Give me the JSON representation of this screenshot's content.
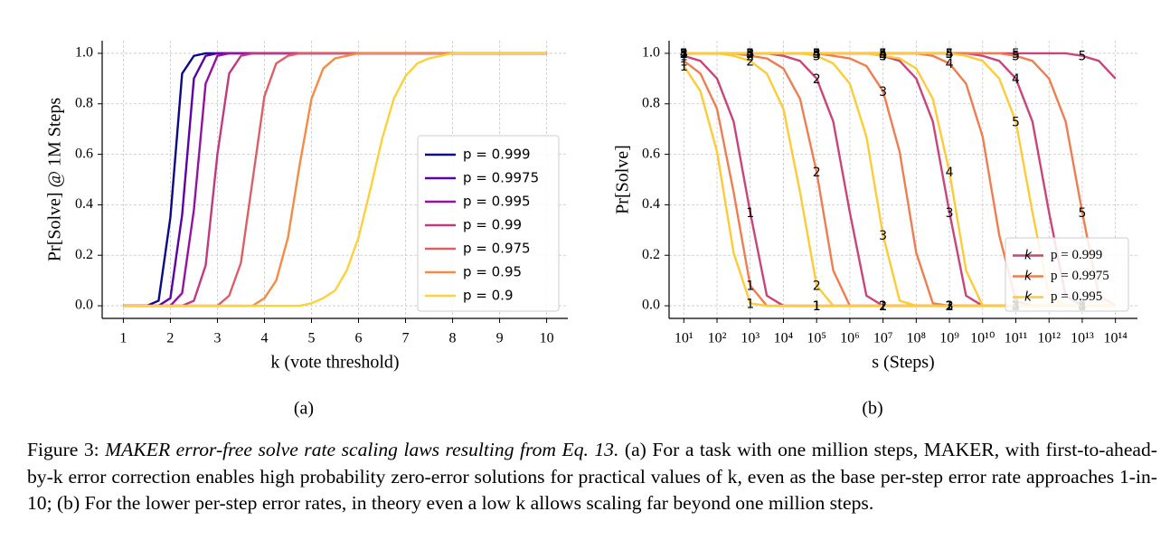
{
  "chart_data": [
    {
      "type": "line",
      "subfigure_label": "(a)",
      "xlabel": "k (vote threshold)",
      "ylabel": "Pr[Solve] @ 1M Steps",
      "xlim": [
        0.55,
        10.45
      ],
      "ylim": [
        -0.05,
        1.05
      ],
      "xticks": [
        1,
        2,
        3,
        4,
        5,
        6,
        7,
        8,
        9,
        10
      ],
      "yticks": [
        {
          "value": 0,
          "label": "0.0"
        },
        0.2,
        0.4,
        0.6,
        0.8,
        {
          "value": 1,
          "label": "1.0"
        }
      ],
      "grid": true,
      "legend": "lower right",
      "x": [
        1,
        1.25,
        1.5,
        1.75,
        2,
        2.25,
        2.5,
        2.75,
        3,
        3.25,
        3.5,
        3.75,
        4,
        4.25,
        4.5,
        4.75,
        5,
        5.25,
        5.5,
        5.75,
        6,
        6.25,
        6.5,
        6.75,
        7,
        7.25,
        7.5,
        7.75,
        8,
        8.25,
        8.5,
        8.75,
        9,
        9.25,
        9.5,
        9.75,
        10
      ],
      "series": [
        {
          "name": "p = 0.999",
          "color": "#0d0887",
          "values": [
            0,
            0,
            0,
            0.02,
            0.35,
            0.92,
            0.99,
            1,
            1,
            1,
            1,
            1,
            1,
            1,
            1,
            1,
            1,
            1,
            1,
            1,
            1,
            1,
            1,
            1,
            1,
            1,
            1,
            1,
            1,
            1,
            1,
            1,
            1,
            1,
            1,
            1,
            1
          ]
        },
        {
          "name": "p = 0.9975",
          "color": "#5c01a6",
          "values": [
            0,
            0,
            0,
            0,
            0.03,
            0.36,
            0.9,
            0.99,
            1,
            1,
            1,
            1,
            1,
            1,
            1,
            1,
            1,
            1,
            1,
            1,
            1,
            1,
            1,
            1,
            1,
            1,
            1,
            1,
            1,
            1,
            1,
            1,
            1,
            1,
            1,
            1,
            1
          ]
        },
        {
          "name": "p = 0.995",
          "color": "#9511a1",
          "values": [
            0,
            0,
            0,
            0,
            0,
            0.05,
            0.38,
            0.88,
            0.99,
            1,
            1,
            1,
            1,
            1,
            1,
            1,
            1,
            1,
            1,
            1,
            1,
            1,
            1,
            1,
            1,
            1,
            1,
            1,
            1,
            1,
            1,
            1,
            1,
            1,
            1,
            1,
            1
          ]
        },
        {
          "name": "p = 0.99",
          "color": "#c03a83",
          "values": [
            0,
            0,
            0,
            0,
            0,
            0,
            0.02,
            0.16,
            0.6,
            0.92,
            0.99,
            1,
            1,
            1,
            1,
            1,
            1,
            1,
            1,
            1,
            1,
            1,
            1,
            1,
            1,
            1,
            1,
            1,
            1,
            1,
            1,
            1,
            1,
            1,
            1,
            1,
            1
          ]
        },
        {
          "name": "p = 0.975",
          "color": "#dc5f67",
          "values": [
            0,
            0,
            0,
            0,
            0,
            0,
            0,
            0,
            0,
            0.04,
            0.17,
            0.5,
            0.83,
            0.96,
            0.99,
            1,
            1,
            1,
            1,
            1,
            1,
            1,
            1,
            1,
            1,
            1,
            1,
            1,
            1,
            1,
            1,
            1,
            1,
            1,
            1,
            1,
            1
          ]
        },
        {
          "name": "p = 0.95",
          "color": "#f48c45",
          "values": [
            0,
            0,
            0,
            0,
            0,
            0,
            0,
            0,
            0,
            0,
            0,
            0,
            0.03,
            0.1,
            0.27,
            0.56,
            0.82,
            0.94,
            0.98,
            0.99,
            1,
            1,
            1,
            1,
            1,
            1,
            1,
            1,
            1,
            1,
            1,
            1,
            1,
            1,
            1,
            1,
            1
          ]
        },
        {
          "name": "p = 0.9",
          "color": "#fbd23c",
          "values": [
            0,
            0,
            0,
            0,
            0,
            0,
            0,
            0,
            0,
            0,
            0,
            0,
            0,
            0,
            0,
            0,
            0.01,
            0.03,
            0.06,
            0.14,
            0.27,
            0.46,
            0.66,
            0.82,
            0.91,
            0.96,
            0.98,
            0.99,
            1,
            1,
            1,
            1,
            1,
            1,
            1,
            1,
            1
          ]
        }
      ]
    },
    {
      "type": "line",
      "subfigure_label": "(b)",
      "xlabel": "s (Steps)",
      "ylabel": "Pr[Solve]",
      "xscale": "log",
      "xlim": [
        3.6,
        460000000000000
      ],
      "ylim": [
        -0.05,
        1.05
      ],
      "xticks": [
        {
          "value": 10,
          "label": "10¹"
        },
        {
          "value": 100,
          "label": "10²"
        },
        {
          "value": 1000,
          "label": "10³"
        },
        {
          "value": 10000,
          "label": "10⁴"
        },
        {
          "value": 100000,
          "label": "10⁵"
        },
        {
          "value": 1000000,
          "label": "10⁶"
        },
        {
          "value": 10000000,
          "label": "10⁷"
        },
        {
          "value": 100000000,
          "label": "10⁸"
        },
        {
          "value": 1000000000,
          "label": "10⁹"
        },
        {
          "value": 10000000000,
          "label": "10¹⁰"
        },
        {
          "value": 100000000000,
          "label": "10¹¹"
        },
        {
          "value": 1000000000000,
          "label": "10¹²"
        },
        {
          "value": 10000000000000,
          "label": "10¹³"
        },
        {
          "value": 100000000000000,
          "label": "10¹⁴"
        }
      ],
      "yticks": [
        {
          "value": 0,
          "label": "0.0"
        },
        0.2,
        0.4,
        0.6,
        0.8,
        {
          "value": 1,
          "label": "1.0"
        }
      ],
      "grid": true,
      "legend": "lower right",
      "legend_marker_text": "k",
      "x": [
        10,
        31.62,
        100,
        316.2,
        1000,
        3162,
        10000,
        31623,
        100000,
        316228,
        1000000,
        3162278,
        10000000,
        31622777,
        100000000,
        316227766,
        1000000000,
        3162277660,
        10000000000,
        31622776602,
        100000000000,
        316227766017,
        1000000000000,
        3162277660168,
        10000000000000,
        31622776601684,
        100000000000000
      ],
      "series": [
        {
          "name": "p = 0.999",
          "color": "#c9447a",
          "curves": [
            {
              "k": 1,
              "values": [
                0.99,
                0.97,
                0.9,
                0.73,
                0.37,
                0.04,
                0,
                0,
                0,
                0,
                0,
                0,
                0,
                0,
                0,
                0,
                0,
                0,
                0,
                0,
                0,
                0,
                0,
                0,
                0,
                0,
                0
              ]
            },
            {
              "k": 2,
              "values": [
                1,
                1,
                1,
                1,
                1,
                1,
                0.99,
                0.97,
                0.9,
                0.73,
                0.37,
                0.04,
                0,
                0,
                0,
                0,
                0,
                0,
                0,
                0,
                0,
                0,
                0,
                0,
                0,
                0,
                0
              ]
            },
            {
              "k": 3,
              "values": [
                1,
                1,
                1,
                1,
                1,
                1,
                1,
                1,
                1,
                1,
                1,
                1,
                0.99,
                0.97,
                0.9,
                0.73,
                0.37,
                0.04,
                0,
                0,
                0,
                0,
                0,
                0,
                0,
                0,
                0
              ]
            },
            {
              "k": 4,
              "values": [
                1,
                1,
                1,
                1,
                1,
                1,
                1,
                1,
                1,
                1,
                1,
                1,
                1,
                1,
                1,
                1,
                1,
                1,
                0.99,
                0.97,
                0.9,
                0.73,
                0.37,
                0.04,
                0,
                0,
                0
              ]
            },
            {
              "k": 5,
              "values": [
                1,
                1,
                1,
                1,
                1,
                1,
                1,
                1,
                1,
                1,
                1,
                1,
                1,
                1,
                1,
                1,
                1,
                1,
                1,
                1,
                1,
                1,
                1,
                1,
                0.99,
                0.97,
                0.9
              ]
            }
          ]
        },
        {
          "name": "p = 0.9975",
          "color": "#ee7e4f",
          "curves": [
            {
              "k": 1,
              "values": [
                0.97,
                0.92,
                0.78,
                0.45,
                0.08,
                0,
                0,
                0,
                0,
                0,
                0,
                0,
                0,
                0,
                0,
                0,
                0,
                0,
                0,
                0,
                0,
                0,
                0,
                0,
                0,
                0,
                0
              ]
            },
            {
              "k": 2,
              "values": [
                1,
                1,
                1,
                1,
                0.99,
                0.98,
                0.94,
                0.82,
                0.53,
                0.14,
                0,
                0,
                0,
                0,
                0,
                0,
                0,
                0,
                0,
                0,
                0,
                0,
                0,
                0,
                0,
                0,
                0
              ]
            },
            {
              "k": 3,
              "values": [
                1,
                1,
                1,
                1,
                1,
                1,
                1,
                1,
                1,
                0.99,
                0.98,
                0.95,
                0.85,
                0.61,
                0.21,
                0.01,
                0,
                0,
                0,
                0,
                0,
                0,
                0,
                0,
                0,
                0,
                0
              ]
            },
            {
              "k": 4,
              "values": [
                1,
                1,
                1,
                1,
                1,
                1,
                1,
                1,
                1,
                1,
                1,
                1,
                1,
                1,
                1,
                0.99,
                0.96,
                0.88,
                0.67,
                0.28,
                0.02,
                0,
                0,
                0,
                0,
                0,
                0
              ]
            },
            {
              "k": 5,
              "values": [
                1,
                1,
                1,
                1,
                1,
                1,
                1,
                1,
                1,
                1,
                1,
                1,
                1,
                1,
                1,
                1,
                1,
                1,
                1,
                1,
                0.99,
                0.97,
                0.9,
                0.73,
                0.37,
                0.04,
                0
              ]
            }
          ]
        },
        {
          "name": "p = 0.995",
          "color": "#fccc38",
          "curves": [
            {
              "k": 1,
              "values": [
                0.95,
                0.85,
                0.61,
                0.21,
                0.01,
                0,
                0,
                0,
                0,
                0,
                0,
                0,
                0,
                0,
                0,
                0,
                0,
                0,
                0,
                0,
                0,
                0,
                0,
                0,
                0,
                0,
                0
              ]
            },
            {
              "k": 2,
              "values": [
                1,
                1,
                1,
                0.99,
                0.97,
                0.92,
                0.78,
                0.45,
                0.08,
                0,
                0,
                0,
                0,
                0,
                0,
                0,
                0,
                0,
                0,
                0,
                0,
                0,
                0,
                0,
                0,
                0,
                0
              ]
            },
            {
              "k": 3,
              "values": [
                1,
                1,
                1,
                1,
                1,
                1,
                1,
                1,
                0.99,
                0.96,
                0.88,
                0.67,
                0.28,
                0.02,
                0,
                0,
                0,
                0,
                0,
                0,
                0,
                0,
                0,
                0,
                0,
                0,
                0
              ]
            },
            {
              "k": 4,
              "values": [
                1,
                1,
                1,
                1,
                1,
                1,
                1,
                1,
                1,
                1,
                1,
                1,
                0.99,
                0.98,
                0.94,
                0.82,
                0.53,
                0.14,
                0,
                0,
                0,
                0,
                0,
                0,
                0,
                0,
                0
              ]
            },
            {
              "k": 5,
              "values": [
                1,
                1,
                1,
                1,
                1,
                1,
                1,
                1,
                1,
                1,
                1,
                1,
                1,
                1,
                1,
                1,
                1,
                0.99,
                0.97,
                0.9,
                0.73,
                0.37,
                0.04,
                0,
                0,
                0,
                0
              ]
            }
          ]
        }
      ]
    }
  ],
  "caption": {
    "label": "Figure 3:",
    "title": "MAKER error-free solve rate scaling laws resulting from Eq. 13.",
    "text": "(a) For a task with one million steps, MAKER, with first-to-ahead-by-k error correction enables high probability zero-error solutions for practical values of k, even as the base per-step error rate approaches 1-in-10; (b) For the lower per-step error rates, in theory even a low k allows scaling far beyond one million steps."
  }
}
